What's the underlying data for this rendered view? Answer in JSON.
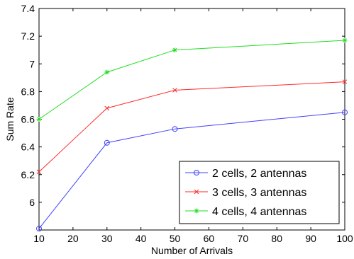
{
  "chart_data": {
    "type": "line",
    "xlabel": "Number of Arrivals",
    "ylabel": "Sum Rate",
    "xlim": [
      10,
      100
    ],
    "ylim": [
      5.8,
      7.4
    ],
    "xticks": [
      10,
      20,
      30,
      40,
      50,
      60,
      70,
      80,
      90,
      100
    ],
    "yticks": [
      6,
      6.2,
      6.4,
      6.6,
      6.8,
      7,
      7.2,
      7.4
    ],
    "ytick_labels": [
      "6",
      "6.2",
      "6.4",
      "6.6",
      "6.8",
      "7",
      "7.2",
      "7.4"
    ],
    "x": [
      10,
      30,
      50,
      100
    ],
    "grid": false,
    "legend_position": "bottom-right",
    "series": [
      {
        "name": "2 cells, 2 antennas",
        "values": [
          5.81,
          6.43,
          6.53,
          6.65
        ],
        "color": "#4040ff",
        "marker": "circle"
      },
      {
        "name": "3 cells, 3 antennas",
        "values": [
          6.22,
          6.68,
          6.81,
          6.87
        ],
        "color": "#ff2a2a",
        "marker": "x"
      },
      {
        "name": "4 cells, 4 antennas",
        "values": [
          6.6,
          6.94,
          7.1,
          7.17
        ],
        "color": "#22dd22",
        "marker": "star"
      }
    ]
  }
}
